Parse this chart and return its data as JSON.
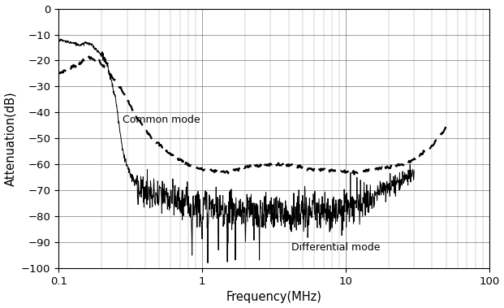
{
  "xlabel": "Frequency(MHz)",
  "ylabel": "Attenuation(dB)",
  "xlim": [
    0.1,
    100
  ],
  "ylim": [
    -100,
    0
  ],
  "yticks": [
    0,
    -10,
    -20,
    -30,
    -40,
    -50,
    -60,
    -70,
    -80,
    -90,
    -100
  ],
  "background_color": "#ffffff",
  "common_mode_label": "Common mode",
  "differential_mode_label": "Differential mode",
  "cm_freqs": [
    0.1,
    0.13,
    0.16,
    0.19,
    0.22,
    0.28,
    0.35,
    0.45,
    0.6,
    0.8,
    1.0,
    1.5,
    2.0,
    3.0,
    4.0,
    5.0,
    6.0,
    7.0,
    8.0,
    10.0,
    12.0,
    15.0,
    20.0,
    25.0,
    30.0,
    40.0,
    50.0
  ],
  "cm_vals": [
    -25,
    -22,
    -19,
    -20,
    -24,
    -32,
    -42,
    -50,
    -56,
    -60,
    -62,
    -63,
    -61,
    -60,
    -60,
    -61,
    -62,
    -62,
    -62,
    -63,
    -63,
    -62,
    -61,
    -60,
    -58,
    -53,
    -46
  ],
  "dm_freqs": [
    0.1,
    0.12,
    0.14,
    0.155,
    0.17,
    0.185,
    0.2,
    0.22,
    0.25,
    0.28,
    0.32,
    0.38,
    0.45,
    0.55,
    0.65,
    0.8,
    1.0,
    1.5,
    2.0,
    3.0,
    5.0,
    7.0,
    10.0,
    15.0,
    20.0,
    30.0
  ],
  "dm_vals": [
    -12,
    -13,
    -14,
    -13,
    -14,
    -16,
    -18,
    -22,
    -35,
    -55,
    -65,
    -70,
    -72,
    -73,
    -74,
    -75,
    -76,
    -77,
    -78,
    -78,
    -79,
    -78,
    -77,
    -73,
    -68,
    -63
  ]
}
